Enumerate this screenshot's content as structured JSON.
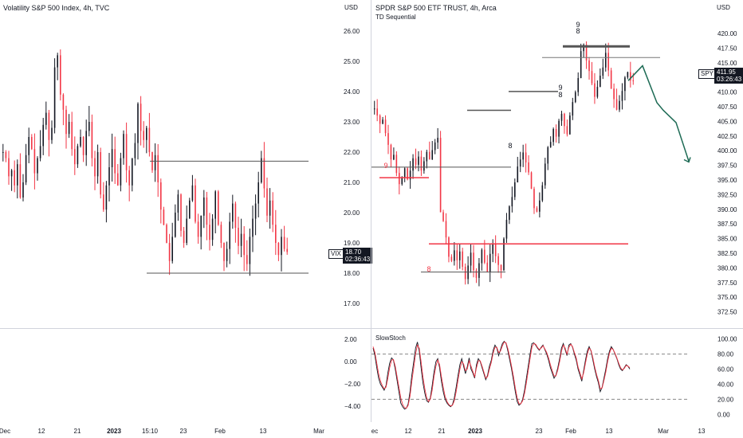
{
  "left": {
    "title": "Volatility S&P 500 Index, 4h, TVC",
    "currency": "USD",
    "ticker": "VIX",
    "price": "18.70",
    "countdown": "02:36:43",
    "osc_ticks": [
      "2.00",
      "0.00",
      "−2.00",
      "−4.00"
    ],
    "xticks": [
      "Dec",
      "12",
      "21",
      "2023",
      "15:10",
      "23",
      "Feb",
      "13",
      "Mar"
    ]
  },
  "right": {
    "title": "SPDR S&P 500 ETF TRUST, 4h, Arca",
    "indicator": "TD Sequential",
    "currency": "USD",
    "ticker": "SPY",
    "price": "411.95",
    "countdown": "03:26:43",
    "osc_label": "SlowStoch",
    "osc_ticks": [
      "100.00",
      "80.00",
      "60.00",
      "40.00",
      "20.00",
      "0.00"
    ],
    "xticks": [
      "ec",
      "12",
      "21",
      "2023",
      "23",
      "Feb",
      "13",
      "Mar",
      "13"
    ],
    "td_labels": [
      "9",
      "8",
      "9",
      "8",
      "8",
      "9",
      "8"
    ]
  },
  "colors": {
    "up": "#131722",
    "down": "#f23645",
    "projection": "#1e6b55",
    "level_dark": "#555555",
    "level_red": "#f23645"
  },
  "chart_data": [
    {
      "type": "candlestick",
      "title": "Volatility S&P 500 Index, 4h, TVC",
      "ylabel": "USD",
      "ylim": [
        16.5,
        26.5
      ],
      "yticks": [
        17.0,
        18.0,
        19.0,
        20.0,
        21.0,
        22.0,
        23.0,
        24.0,
        25.0,
        26.0
      ],
      "xticks": [
        "Dec",
        "12",
        "21",
        "2023",
        "15:10",
        "23",
        "Feb",
        "13",
        "Mar"
      ],
      "last": 18.7,
      "horizontal_levels": [
        21.7,
        18.0
      ],
      "series": [
        {
          "name": "VIX",
          "values": [
            22.0,
            21.8,
            21.2,
            21.4,
            20.9,
            21.6,
            20.5,
            21.0,
            21.9,
            22.5,
            22.1,
            21.3,
            21.8,
            22.2,
            22.9,
            23.3,
            22.4,
            22.8,
            24.8,
            25.2,
            23.9,
            23.4,
            22.6,
            23.0,
            22.1,
            21.6,
            22.2,
            22.5,
            21.9,
            22.7,
            23.0,
            21.8,
            21.2,
            22.0,
            20.6,
            20.1,
            20.9,
            21.5,
            22.1,
            21.3,
            20.9,
            21.8,
            22.6,
            21.4,
            20.9,
            21.8,
            22.3,
            23.6,
            22.7,
            22.4,
            22.8,
            22.0,
            21.4,
            21.9,
            21.0,
            20.1,
            19.6,
            19.0,
            18.4,
            19.2,
            20.0,
            20.6,
            19.4,
            19.0,
            19.8,
            20.4,
            20.9,
            19.7,
            19.2,
            19.9,
            20.5,
            19.6,
            19.1,
            19.8,
            20.7,
            19.6,
            19.0,
            18.4,
            18.8,
            19.7,
            20.3,
            19.5,
            18.9,
            19.3,
            18.6,
            18.3,
            19.2,
            19.8,
            20.3,
            21.0,
            21.8,
            20.8,
            19.9,
            20.4,
            19.6,
            19.0,
            18.6,
            19.2,
            18.8,
            18.7
          ]
        }
      ]
    },
    {
      "type": "candlestick",
      "title": "SPDR S&P 500 ETF TRUST, 4h, Arca",
      "ylabel": "USD",
      "ylim": [
        370.0,
        423.0
      ],
      "yticks": [
        372.5,
        375.0,
        377.5,
        380.0,
        382.5,
        385.0,
        387.5,
        390.0,
        392.5,
        395.0,
        397.5,
        400.0,
        402.5,
        405.0,
        407.5,
        410.0,
        412.5,
        415.0,
        417.5,
        420.0
      ],
      "xticks": [
        "ec",
        "12",
        "21",
        "2023",
        "23",
        "Feb",
        "13",
        "Mar",
        "13"
      ],
      "last": 411.95,
      "horizontal_levels": [
        410.1,
        406.9,
        401.4,
        391.6,
        384.1,
        379.3,
        417.8,
        415.9
      ],
      "series": [
        {
          "name": "SPY",
          "values": [
            407.2,
            406.0,
            404.6,
            405.3,
            403.0,
            401.0,
            398.5,
            399.3,
            396.2,
            394.3,
            395.5,
            397.0,
            395.1,
            396.6,
            398.7,
            397.6,
            399.0,
            396.6,
            398.2,
            399.8,
            398.5,
            400.1,
            401.4,
            402.2,
            389.5,
            388.0,
            385.2,
            381.9,
            381.2,
            383.0,
            381.3,
            382.8,
            380.2,
            378.1,
            380.4,
            382.6,
            379.6,
            378.3,
            380.8,
            383.1,
            380.9,
            379.3,
            382.4,
            384.1,
            382.0,
            380.5,
            379.6,
            385.0,
            388.2,
            390.5,
            392.1,
            394.6,
            397.3,
            398.5,
            399.7,
            398.0,
            396.3,
            393.5,
            390.2,
            389.6,
            391.5,
            394.1,
            397.8,
            400.6,
            401.5,
            403.7,
            402.4,
            405.1,
            406.3,
            404.2,
            402.8,
            406.0,
            408.3,
            410.0,
            412.4,
            417.0,
            418.1,
            415.4,
            413.6,
            411.5,
            409.2,
            410.9,
            412.8,
            414.2,
            416.7,
            413.7,
            410.6,
            408.8,
            407.0,
            408.5,
            410.2,
            412.5,
            413.4,
            412.0,
            411.95
          ]
        }
      ],
      "projection": [
        [
          411.95,
          414.5
        ],
        [
          408.2,
          406.9
        ],
        [
          404.8,
          398.2
        ]
      ]
    },
    {
      "type": "line",
      "title": "",
      "ylim": [
        -4.8,
        2.5
      ],
      "yticks": [
        2.0,
        0.0,
        -2.0,
        -4.0
      ],
      "series": [
        {
          "name": "",
          "values": []
        }
      ]
    },
    {
      "type": "line",
      "title": "SlowStoch",
      "ylim": [
        -5,
        105
      ],
      "yticks": [
        100,
        80,
        60,
        40,
        20,
        0
      ],
      "bands": [
        80,
        20
      ],
      "series": [
        {
          "name": "K",
          "values": [
            88,
            78,
            62,
            48,
            40,
            36,
            32,
            38,
            55,
            68,
            75,
            72,
            60,
            45,
            30,
            15,
            10,
            7,
            8,
            14,
            30,
            52,
            70,
            88,
            96,
            84,
            62,
            42,
            28,
            18,
            16,
            22,
            38,
            56,
            70,
            74,
            62,
            44,
            30,
            20,
            15,
            12,
            10,
            13,
            22,
            36,
            52,
            66,
            74,
            64,
            54,
            63,
            75,
            60,
            55,
            48,
            66,
            74,
            70,
            62,
            54,
            46,
            52,
            64,
            72,
            85,
            92,
            88,
            78,
            86,
            94,
            97,
            94,
            84,
            72,
            60,
            45,
            30,
            17,
            12,
            14,
            20,
            32,
            48,
            64,
            80,
            94,
            95,
            92,
            88,
            85,
            89,
            92,
            86,
            80,
            72,
            62,
            55,
            48,
            52,
            62,
            74,
            88,
            94,
            86,
            78,
            92,
            94,
            89,
            80,
            72,
            60,
            52,
            44,
            58,
            72,
            84,
            90,
            84,
            72,
            60,
            50,
            42,
            30,
            36,
            48,
            60,
            74,
            84,
            90,
            86,
            80,
            74,
            66,
            60,
            58,
            62,
            66,
            64,
            60
          ]
        },
        {
          "name": "D",
          "values": [
            90,
            82,
            68,
            54,
            44,
            38,
            34,
            36,
            48,
            62,
            72,
            73,
            64,
            50,
            36,
            22,
            13,
            9,
            8,
            12,
            24,
            44,
            62,
            80,
            92,
            88,
            70,
            50,
            34,
            22,
            17,
            20,
            32,
            50,
            64,
            72,
            66,
            50,
            36,
            24,
            17,
            13,
            11,
            12,
            18,
            30,
            46,
            60,
            70,
            67,
            58,
            60,
            71,
            64,
            57,
            50,
            62,
            71,
            71,
            64,
            56,
            48,
            50,
            60,
            69,
            81,
            89,
            89,
            82,
            84,
            91,
            96,
            95,
            87,
            76,
            64,
            50,
            35,
            22,
            14,
            14,
            18,
            28,
            42,
            58,
            74,
            89,
            94,
            93,
            89,
            86,
            88,
            91,
            87,
            82,
            75,
            66,
            58,
            51,
            51,
            59,
            70,
            84,
            92,
            88,
            80,
            89,
            93,
            90,
            82,
            75,
            63,
            55,
            47,
            55,
            68,
            80,
            88,
            85,
            75,
            63,
            53,
            45,
            34,
            35,
            45,
            56,
            70,
            81,
            88,
            86,
            81,
            75,
            68,
            62,
            59,
            61,
            65,
            64,
            62
          ]
        }
      ]
    }
  ]
}
